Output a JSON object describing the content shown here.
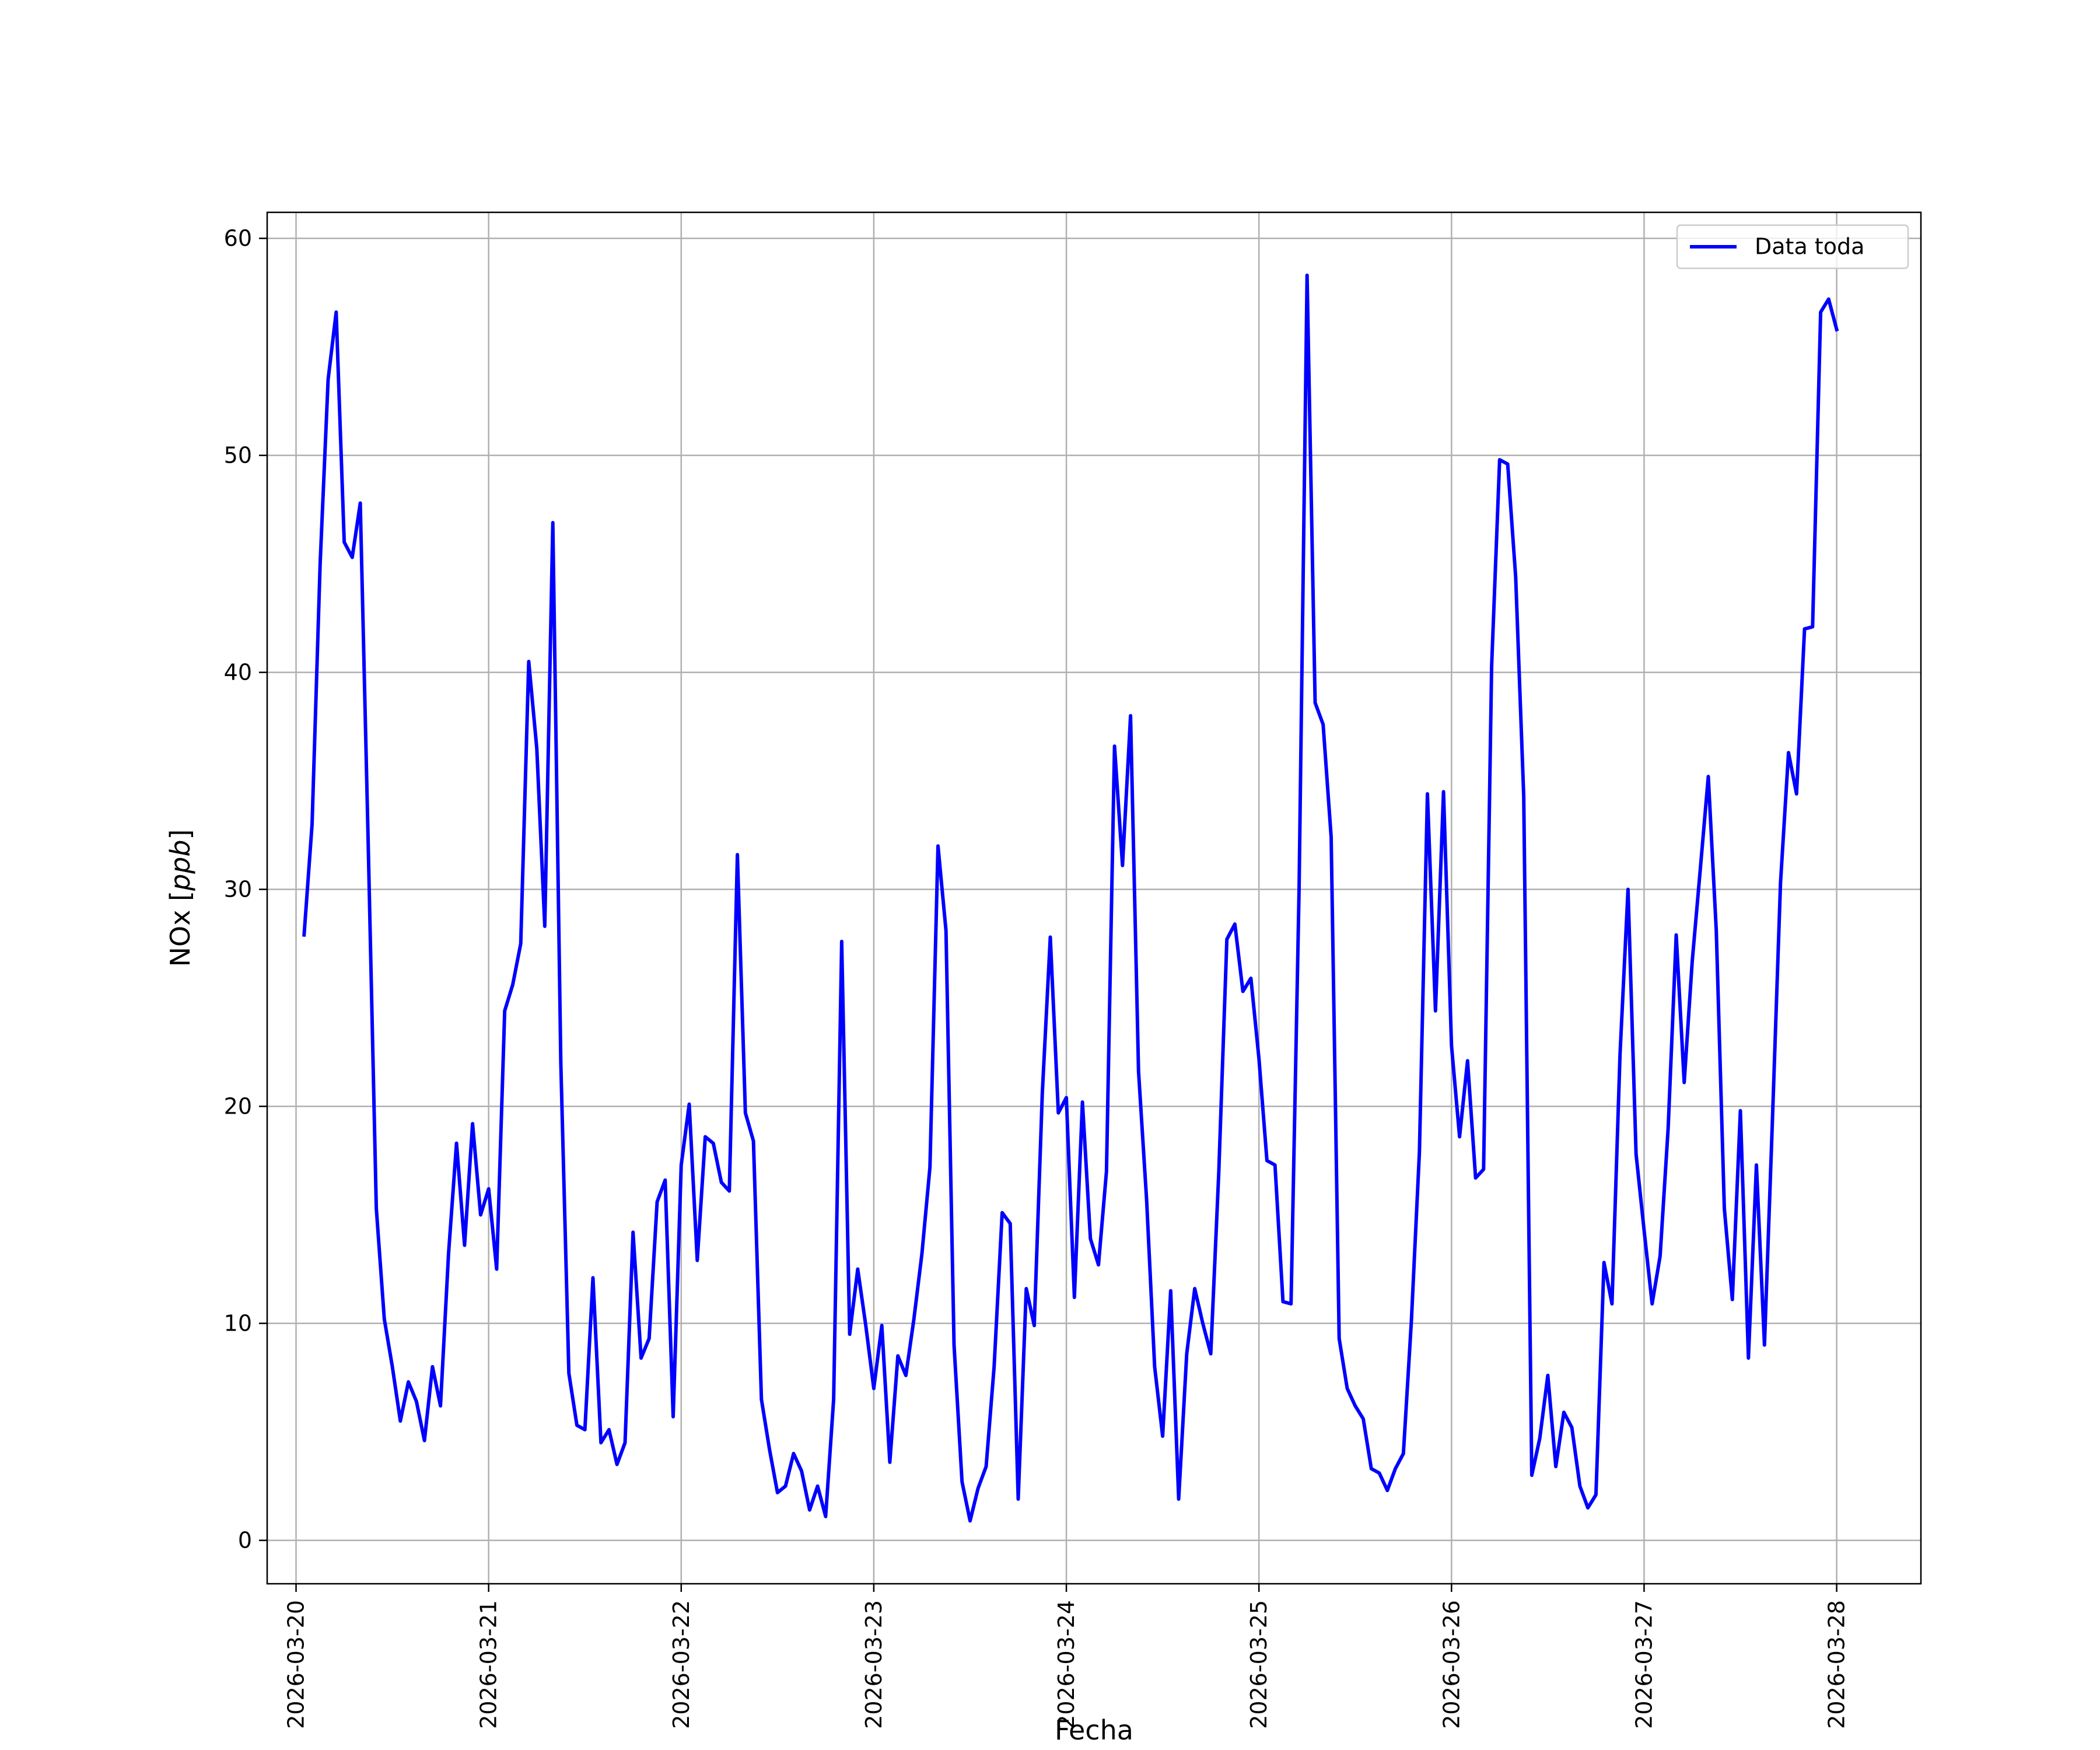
{
  "chart_data": {
    "type": "line",
    "xlabel": "Fecha",
    "ylabel_text": "NOx [",
    "ylabel_unit": "ppb",
    "ylabel_close": "]",
    "legend": {
      "label": "Data toda",
      "position": "top-right"
    },
    "grid": true,
    "xlim": [
      "2026-03-19 20:24",
      "2026-03-28 10:30"
    ],
    "ylim": [
      -2.0,
      61.2
    ],
    "x_ticks": [
      "2026-03-20",
      "2026-03-21",
      "2026-03-22",
      "2026-03-23",
      "2026-03-24",
      "2026-03-25",
      "2026-03-26",
      "2026-03-27",
      "2026-03-28"
    ],
    "y_ticks": [
      "0",
      "10",
      "20",
      "30",
      "40",
      "50",
      "60"
    ],
    "series": [
      {
        "name": "Data toda",
        "color": "#0000ff",
        "x": [
          "2026-03-20 01:00",
          "2026-03-20 02:00",
          "2026-03-20 03:00",
          "2026-03-20 04:00",
          "2026-03-20 05:00",
          "2026-03-20 06:00",
          "2026-03-20 07:00",
          "2026-03-20 08:00",
          "2026-03-20 09:00",
          "2026-03-20 10:00",
          "2026-03-20 11:00",
          "2026-03-20 12:00",
          "2026-03-20 13:00",
          "2026-03-20 14:00",
          "2026-03-20 15:00",
          "2026-03-20 16:00",
          "2026-03-20 17:00",
          "2026-03-20 18:00",
          "2026-03-20 19:00",
          "2026-03-20 20:00",
          "2026-03-20 21:00",
          "2026-03-20 22:00",
          "2026-03-20 23:00",
          "2026-03-21 00:00",
          "2026-03-21 01:00",
          "2026-03-21 02:00",
          "2026-03-21 03:00",
          "2026-03-21 04:00",
          "2026-03-21 05:00",
          "2026-03-21 06:00",
          "2026-03-21 07:00",
          "2026-03-21 08:00",
          "2026-03-21 09:00",
          "2026-03-21 10:00",
          "2026-03-21 11:00",
          "2026-03-21 12:00",
          "2026-03-21 13:00",
          "2026-03-21 14:00",
          "2026-03-21 15:00",
          "2026-03-21 16:00",
          "2026-03-21 17:00",
          "2026-03-21 18:00",
          "2026-03-21 19:00",
          "2026-03-21 20:00",
          "2026-03-21 21:00",
          "2026-03-21 22:00",
          "2026-03-21 23:00",
          "2026-03-22 00:00",
          "2026-03-22 01:00",
          "2026-03-22 02:00",
          "2026-03-22 03:00",
          "2026-03-22 04:00",
          "2026-03-22 05:00",
          "2026-03-22 06:00",
          "2026-03-22 07:00",
          "2026-03-22 08:00",
          "2026-03-22 09:00",
          "2026-03-22 10:00",
          "2026-03-22 11:00",
          "2026-03-22 12:00",
          "2026-03-22 13:00",
          "2026-03-22 14:00",
          "2026-03-22 15:00",
          "2026-03-22 16:00",
          "2026-03-22 17:00",
          "2026-03-22 18:00",
          "2026-03-22 19:00",
          "2026-03-22 20:00",
          "2026-03-22 21:00",
          "2026-03-22 22:00",
          "2026-03-22 23:00",
          "2026-03-23 00:00",
          "2026-03-23 01:00",
          "2026-03-23 02:00",
          "2026-03-23 03:00",
          "2026-03-23 04:00",
          "2026-03-23 05:00",
          "2026-03-23 06:00",
          "2026-03-23 07:00",
          "2026-03-23 08:00",
          "2026-03-23 09:00",
          "2026-03-23 10:00",
          "2026-03-23 11:00",
          "2026-03-23 12:00",
          "2026-03-23 13:00",
          "2026-03-23 14:00",
          "2026-03-23 15:00",
          "2026-03-23 16:00",
          "2026-03-23 17:00",
          "2026-03-23 18:00",
          "2026-03-23 19:00",
          "2026-03-23 20:00",
          "2026-03-23 21:00",
          "2026-03-23 22:00",
          "2026-03-23 23:00",
          "2026-03-24 00:00",
          "2026-03-24 01:00",
          "2026-03-24 02:00",
          "2026-03-24 03:00",
          "2026-03-24 04:00",
          "2026-03-24 05:00",
          "2026-03-24 06:00",
          "2026-03-24 07:00",
          "2026-03-24 08:00",
          "2026-03-24 09:00",
          "2026-03-24 10:00",
          "2026-03-24 11:00",
          "2026-03-24 12:00",
          "2026-03-24 13:00",
          "2026-03-24 14:00",
          "2026-03-24 15:00",
          "2026-03-24 16:00",
          "2026-03-24 17:00",
          "2026-03-24 18:00",
          "2026-03-24 19:00",
          "2026-03-24 20:00",
          "2026-03-24 21:00",
          "2026-03-24 22:00",
          "2026-03-24 23:00",
          "2026-03-25 00:00",
          "2026-03-25 01:00",
          "2026-03-25 02:00",
          "2026-03-25 03:00",
          "2026-03-25 04:00",
          "2026-03-25 05:00",
          "2026-03-25 06:00",
          "2026-03-25 07:00",
          "2026-03-25 08:00",
          "2026-03-25 09:00",
          "2026-03-25 10:00",
          "2026-03-25 11:00",
          "2026-03-25 12:00",
          "2026-03-25 13:00",
          "2026-03-25 14:00",
          "2026-03-25 15:00",
          "2026-03-25 16:00",
          "2026-03-25 17:00",
          "2026-03-25 18:00",
          "2026-03-25 19:00",
          "2026-03-25 20:00",
          "2026-03-25 21:00",
          "2026-03-25 22:00",
          "2026-03-25 23:00",
          "2026-03-26 00:00",
          "2026-03-26 01:00",
          "2026-03-26 02:00",
          "2026-03-26 03:00",
          "2026-03-26 04:00",
          "2026-03-26 05:00",
          "2026-03-26 06:00",
          "2026-03-26 07:00",
          "2026-03-26 08:00",
          "2026-03-26 09:00",
          "2026-03-26 10:00",
          "2026-03-26 11:00",
          "2026-03-26 12:00",
          "2026-03-26 13:00",
          "2026-03-26 14:00",
          "2026-03-26 15:00",
          "2026-03-26 16:00",
          "2026-03-26 17:00",
          "2026-03-26 18:00",
          "2026-03-26 19:00",
          "2026-03-26 20:00",
          "2026-03-26 21:00",
          "2026-03-26 22:00",
          "2026-03-26 23:00",
          "2026-03-27 00:00",
          "2026-03-27 01:00",
          "2026-03-27 02:00",
          "2026-03-27 03:00",
          "2026-03-27 04:00",
          "2026-03-27 05:00",
          "2026-03-27 06:00",
          "2026-03-27 07:00",
          "2026-03-27 08:00",
          "2026-03-27 09:00",
          "2026-03-27 10:00",
          "2026-03-27 11:00",
          "2026-03-27 12:00",
          "2026-03-27 13:00",
          "2026-03-27 14:00",
          "2026-03-27 15:00",
          "2026-03-27 16:00",
          "2026-03-27 17:00",
          "2026-03-27 18:00",
          "2026-03-27 19:00",
          "2026-03-27 20:00",
          "2026-03-27 21:00",
          "2026-03-27 22:00",
          "2026-03-27 23:00",
          "2026-03-28 00:00"
        ],
        "values": [
          27.9,
          33.0,
          45.0,
          53.5,
          56.6,
          46.0,
          45.3,
          47.8,
          32.0,
          15.3,
          10.2,
          8.0,
          5.5,
          7.3,
          6.4,
          4.6,
          8.0,
          6.2,
          13.2,
          18.3,
          13.6,
          19.2,
          15.0,
          16.2,
          12.5,
          24.4,
          25.6,
          27.5,
          40.5,
          36.5,
          28.3,
          46.9,
          22.0,
          7.7,
          5.3,
          5.1,
          12.1,
          4.5,
          5.1,
          3.5,
          4.5,
          14.2,
          8.4,
          9.3,
          15.6,
          16.6,
          5.7,
          17.3,
          20.1,
          12.9,
          18.6,
          18.3,
          16.5,
          16.1,
          31.6,
          19.7,
          18.4,
          6.5,
          4.2,
          2.2,
          2.5,
          4.0,
          3.2,
          1.4,
          2.5,
          1.1,
          6.5,
          27.6,
          9.5,
          12.5,
          9.9,
          7.0,
          9.9,
          3.6,
          8.5,
          7.6,
          10.2,
          13.2,
          17.2,
          32.0,
          28.1,
          9.0,
          2.7,
          0.9,
          2.4,
          3.4,
          8.0,
          15.1,
          14.6,
          1.9,
          11.6,
          9.9,
          20.6,
          27.8,
          19.7,
          20.4,
          11.2,
          20.2,
          13.9,
          12.7,
          17.0,
          36.6,
          31.1,
          38.0,
          21.6,
          15.7,
          8.0,
          4.8,
          11.5,
          1.9,
          8.6,
          11.6,
          10.0,
          8.6,
          17.0,
          27.7,
          28.4,
          25.3,
          25.9,
          22.2,
          17.5,
          17.3,
          11.0,
          10.9,
          30.0,
          58.3,
          38.6,
          37.6,
          32.4,
          9.3,
          7.0,
          6.2,
          5.6,
          3.3,
          3.1,
          2.3,
          3.3,
          4.0,
          10.1,
          17.9,
          34.4,
          24.4,
          34.5,
          22.8,
          18.6,
          22.1,
          16.7,
          17.1,
          40.3,
          49.8,
          49.6,
          44.4,
          34.3,
          3.0,
          4.7,
          7.6,
          3.4,
          5.9,
          5.2,
          2.5,
          1.5,
          2.1,
          12.8,
          10.9,
          22.4,
          30.0,
          17.8,
          14.3,
          10.9,
          13.1,
          19.0,
          27.9,
          21.1,
          26.7,
          30.9,
          35.2,
          28.1,
          15.3,
          11.1,
          19.8,
          8.4,
          17.3,
          9.0,
          19.4,
          30.3,
          36.3,
          34.4,
          42.0,
          42.1,
          56.6,
          57.2,
          55.8
        ]
      }
    ]
  }
}
